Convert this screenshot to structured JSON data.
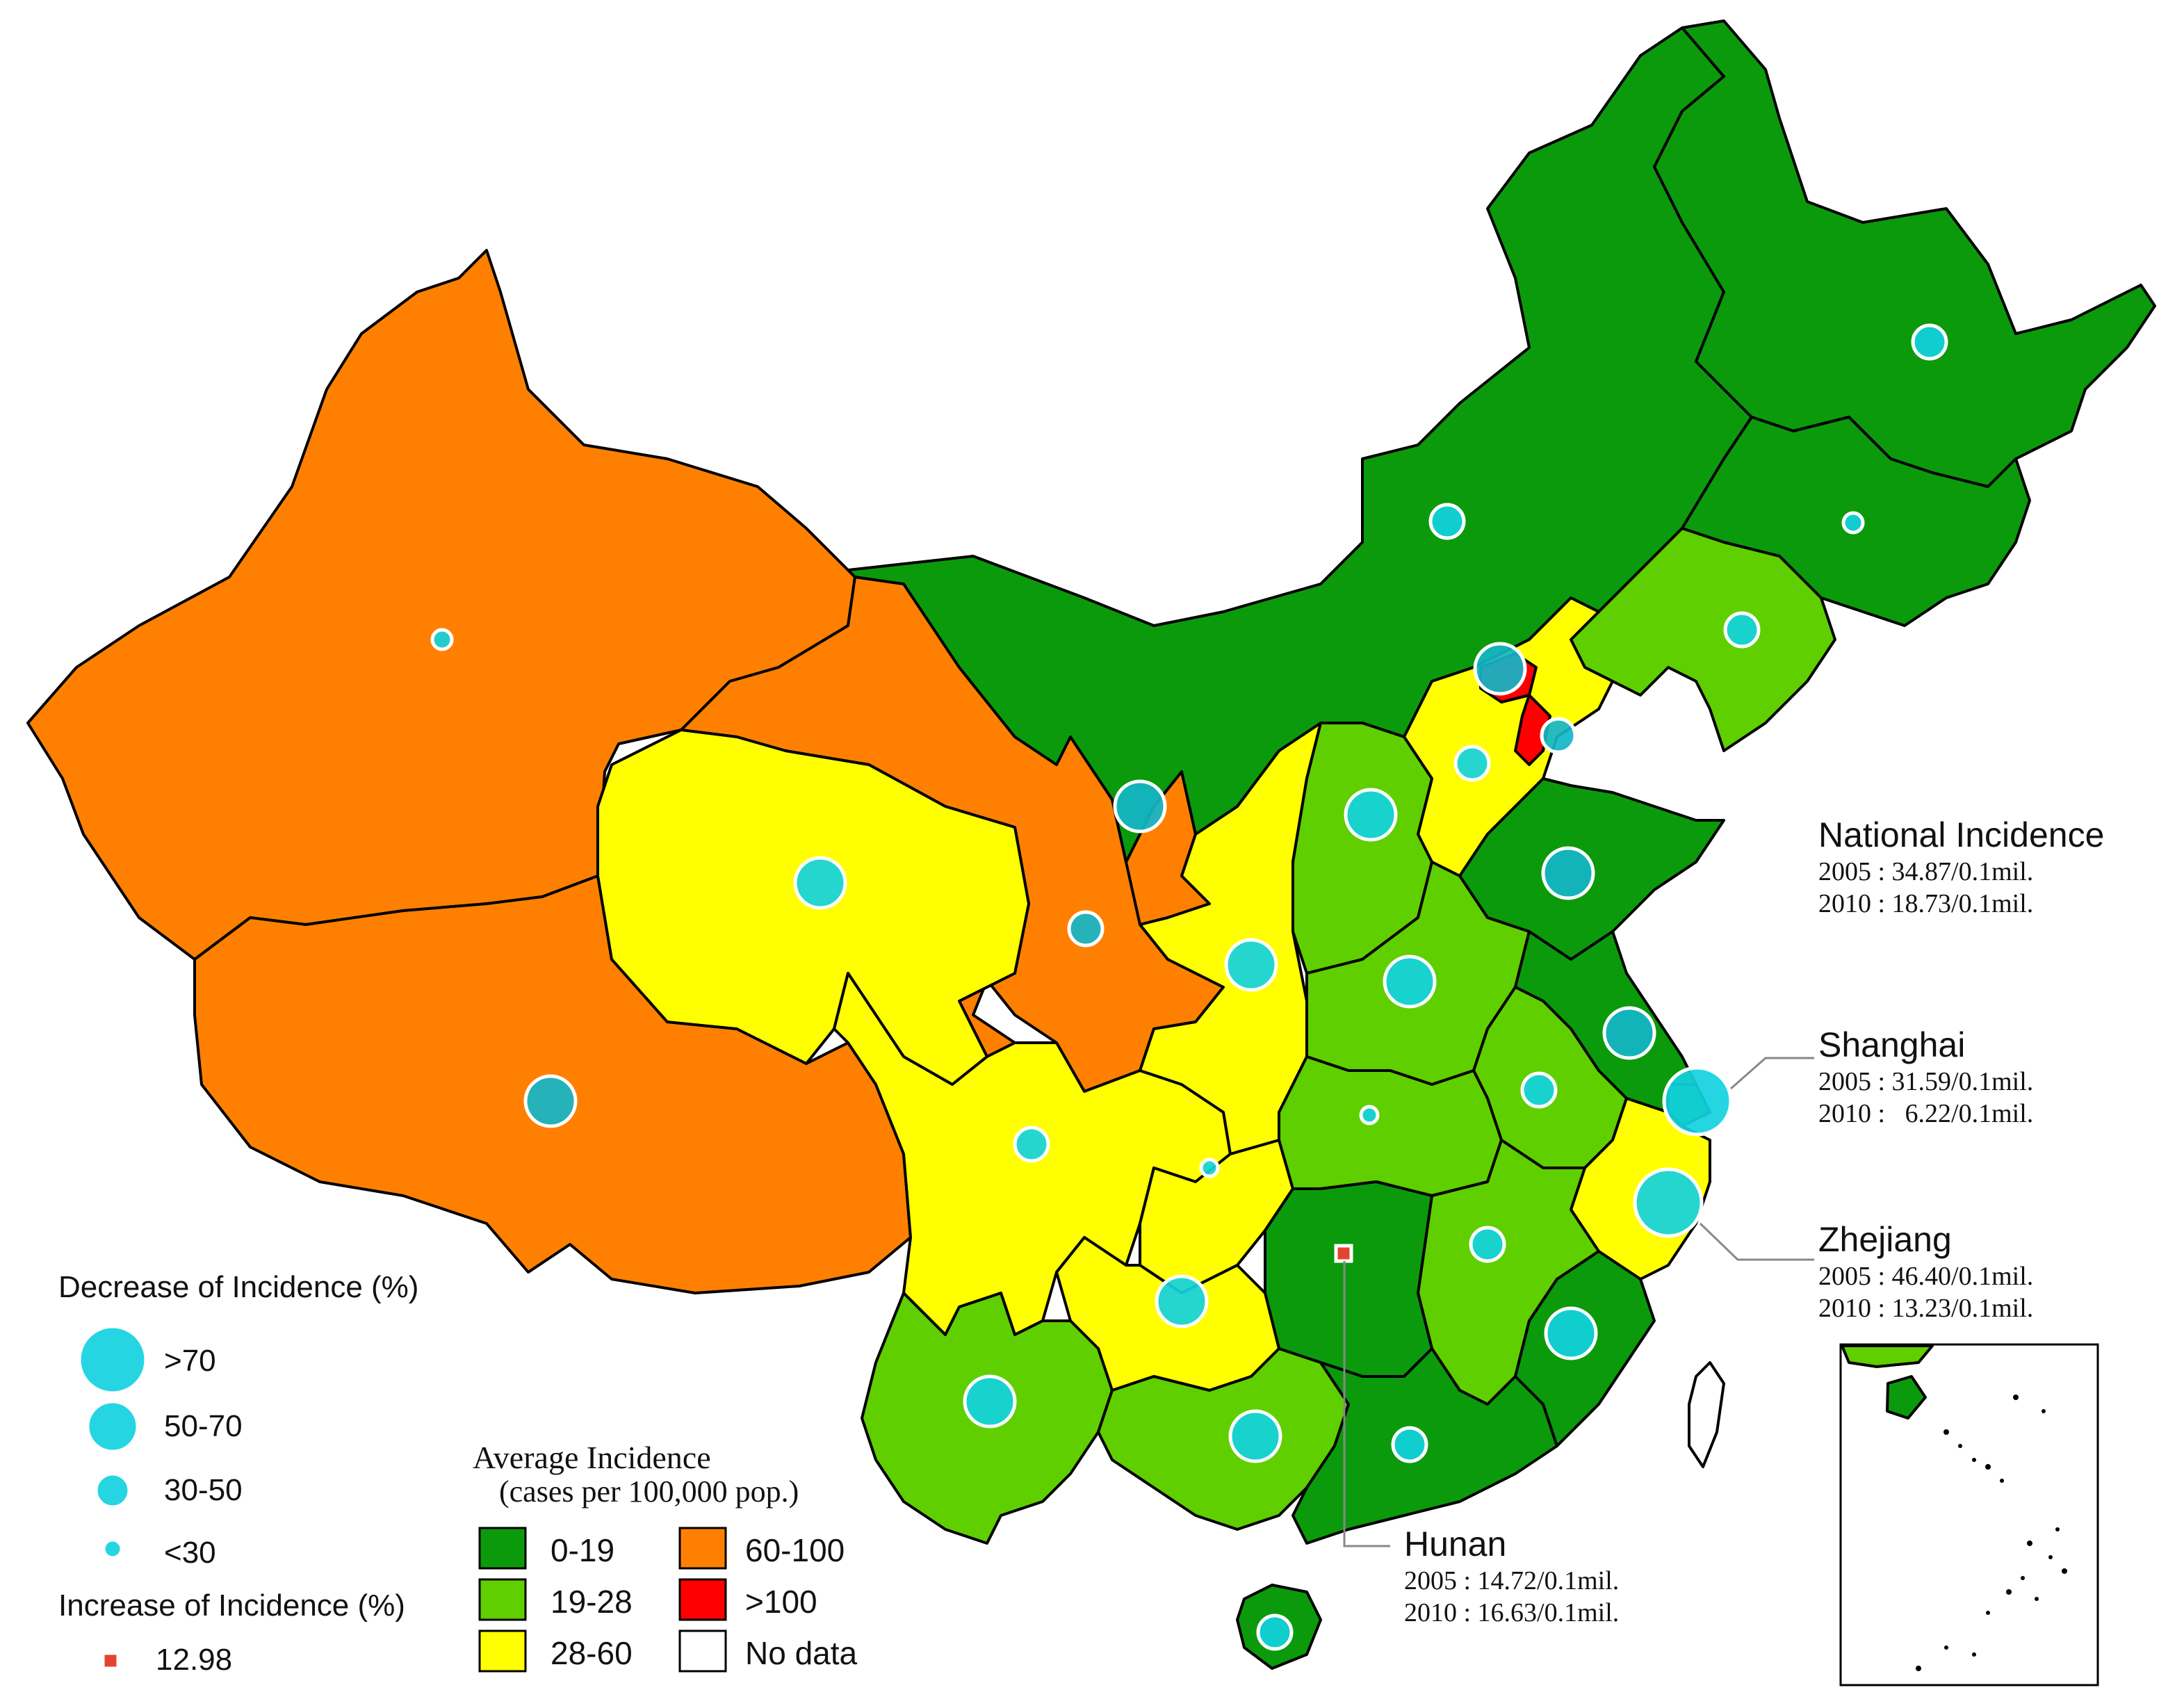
{
  "colors": {
    "c0_19": "#0b9a0b",
    "c19_28": "#5fcf00",
    "c28_60": "#ffff00",
    "c60_100": "#ff8000",
    "c_gt100": "#ff0000",
    "no_data": "#ffffff",
    "decrease_bubble": "#12d3e0",
    "increase_marker": "#e2452f"
  },
  "legend_decrease": {
    "title": "Decrease of Incidence (%)",
    "items": [
      ">70",
      "50-70",
      "30-50",
      "<30"
    ]
  },
  "legend_increase": {
    "title": "Increase of Incidence (%)",
    "value": "12.98"
  },
  "legend_average": {
    "title_line1": "Average Incidence",
    "title_line2": "(cases per 100,000 pop.)",
    "items": [
      "0-19",
      "19-28",
      "28-60",
      "60-100",
      ">100",
      "No data"
    ]
  },
  "annotations": {
    "national": {
      "title": "National Incidence",
      "line1": "2005 : 34.87/0.1mil.",
      "line2": "2010 : 18.73/0.1mil."
    },
    "shanghai": {
      "title": "Shanghai",
      "line1": "2005 : 31.59/0.1mil.",
      "line2": "2010 :   6.22/0.1mil."
    },
    "zhejiang": {
      "title": "Zhejiang",
      "line1": "2005 : 46.40/0.1mil.",
      "line2": "2010 : 13.23/0.1mil."
    },
    "hunan": {
      "title": "Hunan",
      "line1": "2005 : 14.72/0.1mil.",
      "line2": "2010 : 16.63/0.1mil."
    }
  }
}
